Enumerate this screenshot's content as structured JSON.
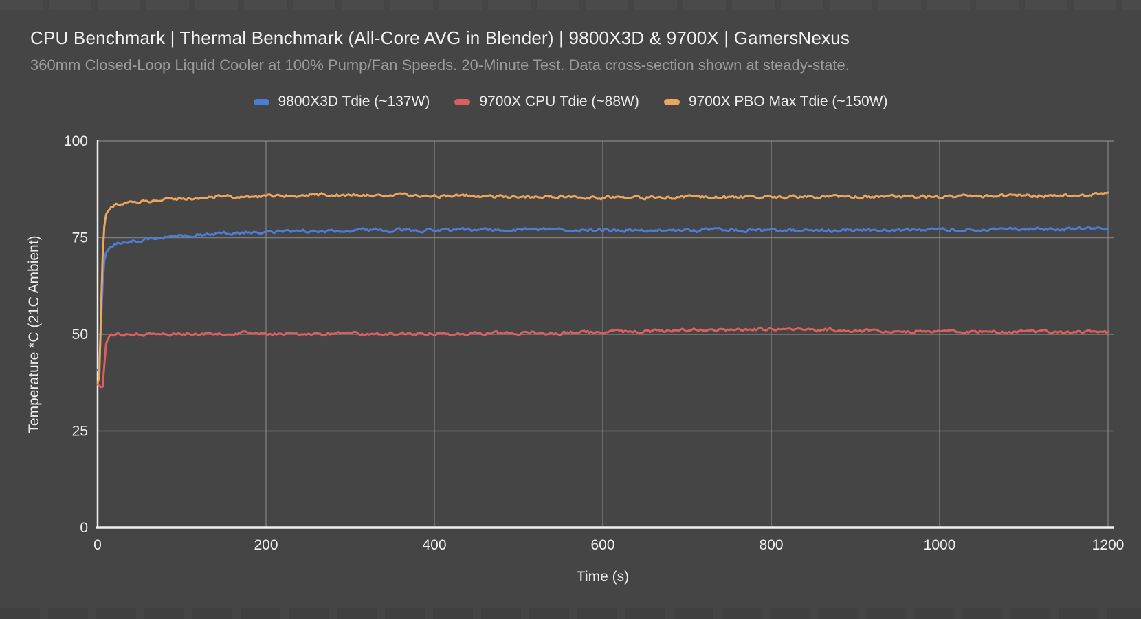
{
  "colors": {
    "background": "#454545",
    "axis_spine": "#EFEFEF",
    "gridline": "#9A9A9A",
    "title": "#F2F2F2",
    "subtitle": "#9B9B9B",
    "tick_label": "#F0F0F0"
  },
  "chart_data": {
    "type": "line",
    "title": "CPU Benchmark | Thermal Benchmark (All-Core AVG in Blender) | 9800X3D & 9700X | GamersNexus",
    "subtitle": "360mm Closed-Loop Liquid Cooler at 100% Pump/Fan Speeds. 20-Minute Test. Data cross-section shown at steady-state.",
    "xlabel": "Time (s)",
    "ylabel": "Temperature *C (21C Ambient)",
    "xlim": [
      0,
      1200
    ],
    "ylim": [
      0,
      100
    ],
    "x_ticks": [
      0,
      200,
      400,
      600,
      800,
      1000,
      1200
    ],
    "y_ticks": [
      0,
      25,
      50,
      75,
      100
    ],
    "grid": true,
    "legend_position": "top",
    "series": [
      {
        "id": "9800x3d-tdie",
        "name": "9800X3D Tdie (~137W)",
        "color": "#4D7CD6",
        "steady_state_c": 77,
        "points": [
          [
            0,
            40.5
          ],
          [
            2,
            41.5
          ],
          [
            4,
            52
          ],
          [
            6,
            63
          ],
          [
            8,
            69
          ],
          [
            10,
            71
          ],
          [
            13,
            72.2
          ],
          [
            16,
            72.8
          ],
          [
            20,
            73.2
          ],
          [
            26,
            73.5
          ],
          [
            34,
            73.8
          ],
          [
            45,
            74.1
          ],
          [
            60,
            74.6
          ],
          [
            80,
            75.1
          ],
          [
            100,
            75.5
          ],
          [
            125,
            75.9
          ],
          [
            150,
            76.2
          ],
          [
            175,
            76.4
          ],
          [
            200,
            76.5
          ],
          [
            240,
            76.7
          ],
          [
            280,
            76.8
          ],
          [
            330,
            76.9
          ],
          [
            400,
            77
          ],
          [
            470,
            77
          ],
          [
            540,
            77
          ],
          [
            600,
            77
          ],
          [
            660,
            76.9
          ],
          [
            720,
            76.9
          ],
          [
            780,
            77
          ],
          [
            840,
            76.9
          ],
          [
            900,
            76.9
          ],
          [
            960,
            77
          ],
          [
            1020,
            77
          ],
          [
            1080,
            77.1
          ],
          [
            1140,
            77.2
          ],
          [
            1200,
            77.4
          ]
        ]
      },
      {
        "id": "9700x-cpu-tdie",
        "name": "9700X CPU Tdie (~88W)",
        "color": "#D9605E",
        "steady_state_c": 50.5,
        "points": [
          [
            0,
            37
          ],
          [
            2,
            36.6
          ],
          [
            4,
            36.3
          ],
          [
            5,
            38.5
          ],
          [
            6,
            36.4
          ],
          [
            8,
            42
          ],
          [
            10,
            47.5
          ],
          [
            13,
            49.2
          ],
          [
            16,
            49.6
          ],
          [
            20,
            49.8
          ],
          [
            30,
            49.9
          ],
          [
            45,
            50
          ],
          [
            60,
            50.1
          ],
          [
            90,
            50.1
          ],
          [
            120,
            50.2
          ],
          [
            160,
            50.2
          ],
          [
            200,
            50.2
          ],
          [
            250,
            50.2
          ],
          [
            300,
            50.1
          ],
          [
            350,
            50.2
          ],
          [
            400,
            50.2
          ],
          [
            450,
            50.2
          ],
          [
            500,
            50.3
          ],
          [
            550,
            50.4
          ],
          [
            600,
            50.5
          ],
          [
            640,
            50.7
          ],
          [
            680,
            50.9
          ],
          [
            720,
            51.1
          ],
          [
            760,
            51.2
          ],
          [
            800,
            51.3
          ],
          [
            840,
            51.2
          ],
          [
            880,
            51.1
          ],
          [
            920,
            51
          ],
          [
            960,
            50.9
          ],
          [
            1000,
            50.8
          ],
          [
            1050,
            50.7
          ],
          [
            1100,
            50.7
          ],
          [
            1150,
            50.6
          ],
          [
            1200,
            50.5
          ]
        ]
      },
      {
        "id": "9700x-pbo-max-tdie",
        "name": "9700X PBO Max Tdie (~150W)",
        "color": "#EBA55D",
        "steady_state_c": 85.8,
        "points": [
          [
            0,
            37.2
          ],
          [
            2,
            39
          ],
          [
            4,
            55
          ],
          [
            6,
            70
          ],
          [
            8,
            78
          ],
          [
            10,
            81
          ],
          [
            13,
            82.5
          ],
          [
            16,
            83
          ],
          [
            20,
            83.4
          ],
          [
            26,
            83.7
          ],
          [
            34,
            84
          ],
          [
            45,
            84.3
          ],
          [
            60,
            84.6
          ],
          [
            80,
            84.9
          ],
          [
            100,
            85.1
          ],
          [
            125,
            85.3
          ],
          [
            150,
            85.5
          ],
          [
            175,
            85.7
          ],
          [
            200,
            85.8
          ],
          [
            230,
            86
          ],
          [
            260,
            86.1
          ],
          [
            300,
            86
          ],
          [
            350,
            85.9
          ],
          [
            400,
            85.8
          ],
          [
            450,
            85.7
          ],
          [
            500,
            85.6
          ],
          [
            550,
            85.5
          ],
          [
            600,
            85.4
          ],
          [
            650,
            85.4
          ],
          [
            700,
            85.4
          ],
          [
            750,
            85.5
          ],
          [
            800,
            85.4
          ],
          [
            850,
            85.5
          ],
          [
            900,
            85.5
          ],
          [
            950,
            85.6
          ],
          [
            1000,
            85.6
          ],
          [
            1050,
            85.7
          ],
          [
            1100,
            85.8
          ],
          [
            1150,
            86
          ],
          [
            1200,
            86.2
          ]
        ]
      }
    ]
  }
}
